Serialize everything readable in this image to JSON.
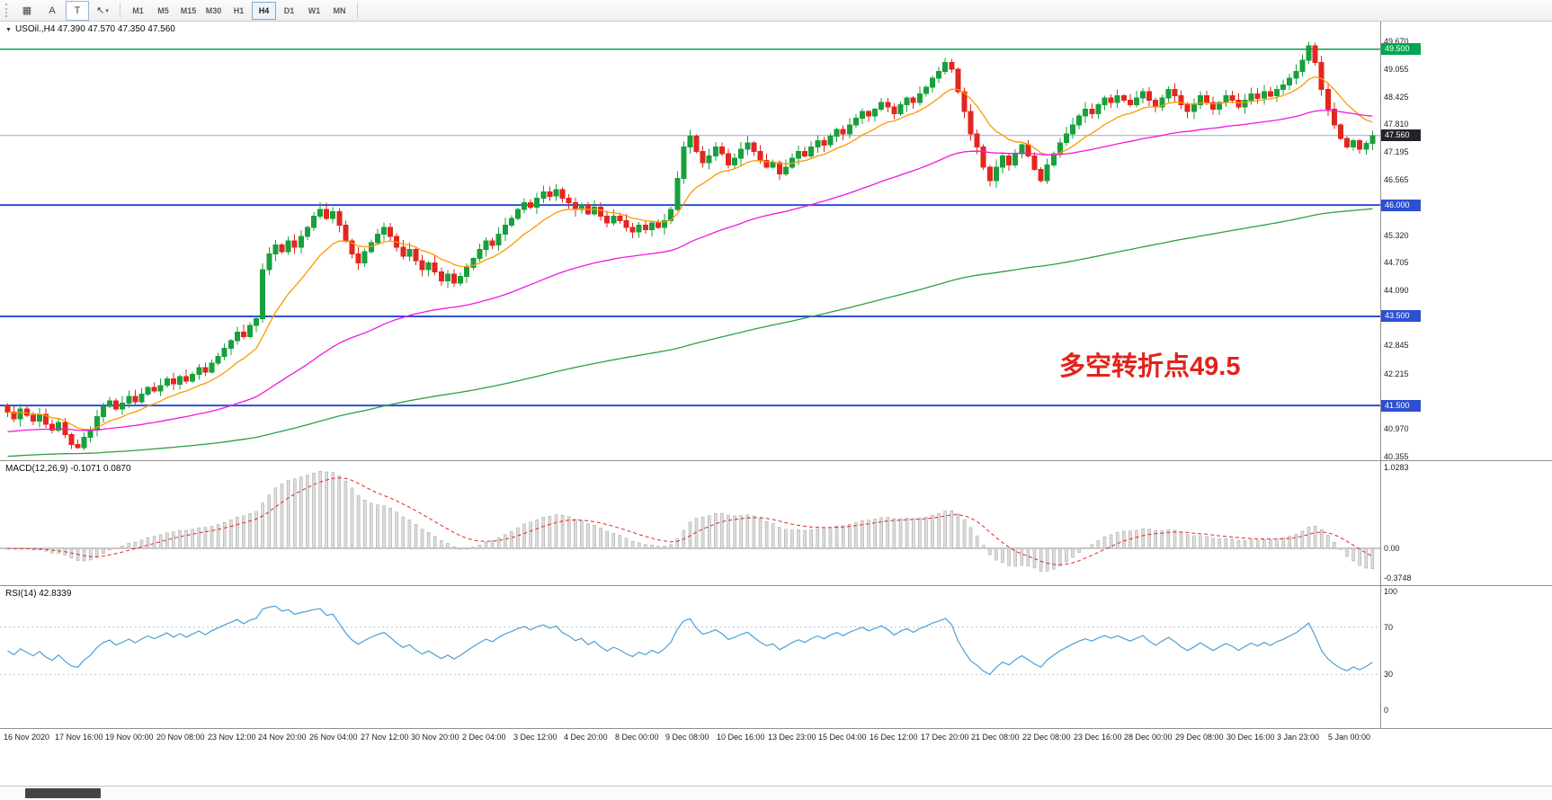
{
  "toolbar": {
    "tools": [
      {
        "name": "chart-grid",
        "glyph": "▦"
      },
      {
        "name": "text-a",
        "glyph": "A"
      },
      {
        "name": "text-t",
        "glyph": "T"
      },
      {
        "name": "cursor",
        "glyph": "↖",
        "caret": "▾"
      }
    ],
    "timeframes": [
      "M1",
      "M5",
      "M15",
      "M30",
      "H1",
      "H4",
      "D1",
      "W1",
      "MN"
    ],
    "active_timeframe": "H4"
  },
  "header": {
    "toggle": "▼",
    "symbol": "USOil.,H4",
    "ohlc": "47.390 47.570 47.350 47.560"
  },
  "annotation": {
    "text": "多空转折点49.5",
    "color": "#e2231a"
  },
  "indicators": {
    "macd": {
      "label": "MACD(12,26,9)",
      "values": "-0.1071 0.0870",
      "axis": [
        "1.0283",
        "0.00",
        "-0.3748"
      ]
    },
    "rsi": {
      "label": "RSI(14)",
      "value": "42.8339",
      "axis": [
        "100",
        "70",
        "30",
        "0"
      ],
      "levels": [
        70,
        30
      ]
    }
  },
  "price_axis": {
    "labels": [
      "49.670",
      "49.055",
      "48.425",
      "47.810",
      "47.195",
      "46.565",
      "45.320",
      "44.705",
      "44.090",
      "42.845",
      "42.215",
      "40.970",
      "40.355"
    ],
    "tags": [
      {
        "label": "49.500",
        "price": 49.5,
        "bg": "#00a651"
      },
      {
        "label": "47.560",
        "price": 47.56,
        "bg": "#23232d"
      },
      {
        "label": "46.000",
        "price": 46.0,
        "bg": "#2e4fd2"
      },
      {
        "label": "43.500",
        "price": 43.5,
        "bg": "#2e4fd2"
      },
      {
        "label": "41.500",
        "price": 41.5,
        "bg": "#2e4fd2"
      }
    ]
  },
  "time_axis": {
    "labels": [
      "16 Nov 2020",
      "17 Nov 16:00",
      "19 Nov 00:00",
      "20 Nov 08:00",
      "23 Nov 12:00",
      "24 Nov 20:00",
      "26 Nov 04:00",
      "27 Nov 12:00",
      "30 Nov 20:00",
      "2 Dec 04:00",
      "3 Dec 12:00",
      "4 Dec 20:00",
      "8 Dec 00:00",
      "9 Dec 08:00",
      "10 Dec 16:00",
      "13 Dec 23:00",
      "15 Dec 04:00",
      "16 Dec 12:00",
      "17 Dec 20:00",
      "21 Dec 08:00",
      "22 Dec 08:00",
      "23 Dec 16:00",
      "28 Dec 00:00",
      "29 Dec 08:00",
      "30 Dec 16:00",
      "3 Jan 23:00",
      "5 Jan 00:00"
    ]
  },
  "chart_data": {
    "type": "candlestick",
    "symbol": "USOil",
    "timeframe": "H4",
    "last_price": 47.56,
    "visible_price_range": [
      40.355,
      49.67
    ],
    "first_open": 41.5,
    "closes": [
      41.35,
      41.2,
      41.42,
      41.28,
      41.15,
      41.3,
      41.08,
      40.95,
      41.12,
      40.85,
      40.62,
      40.55,
      40.78,
      40.95,
      41.25,
      41.48,
      41.6,
      41.42,
      41.55,
      41.7,
      41.58,
      41.75,
      41.9,
      41.82,
      41.95,
      42.1,
      41.98,
      42.15,
      42.05,
      42.2,
      42.35,
      42.25,
      42.45,
      42.6,
      42.78,
      42.95,
      43.15,
      43.05,
      43.3,
      43.45,
      44.55,
      44.9,
      45.1,
      44.95,
      45.2,
      45.05,
      45.3,
      45.5,
      45.75,
      45.9,
      45.7,
      45.85,
      45.55,
      45.2,
      44.9,
      44.7,
      44.95,
      45.15,
      45.35,
      45.5,
      45.3,
      45.05,
      44.85,
      45.0,
      44.75,
      44.55,
      44.7,
      44.5,
      44.3,
      44.45,
      44.25,
      44.4,
      44.6,
      44.8,
      45.0,
      45.2,
      45.1,
      45.35,
      45.55,
      45.7,
      45.9,
      46.05,
      45.95,
      46.15,
      46.3,
      46.2,
      46.35,
      46.15,
      46.05,
      45.9,
      46.0,
      45.8,
      45.95,
      45.75,
      45.6,
      45.75,
      45.65,
      45.5,
      45.4,
      45.55,
      45.45,
      45.6,
      45.5,
      45.65,
      45.9,
      46.6,
      47.3,
      47.55,
      47.2,
      46.95,
      47.1,
      47.3,
      47.15,
      46.9,
      47.05,
      47.25,
      47.4,
      47.2,
      47.0,
      46.85,
      46.95,
      46.7,
      46.85,
      47.05,
      47.2,
      47.1,
      47.3,
      47.45,
      47.35,
      47.55,
      47.7,
      47.6,
      47.8,
      47.95,
      48.1,
      48.0,
      48.15,
      48.3,
      48.2,
      48.05,
      48.25,
      48.4,
      48.3,
      48.5,
      48.65,
      48.85,
      49.0,
      49.2,
      49.05,
      48.55,
      48.1,
      47.6,
      47.3,
      46.85,
      46.55,
      46.85,
      47.1,
      46.9,
      47.15,
      47.35,
      47.1,
      46.8,
      46.55,
      46.9,
      47.15,
      47.4,
      47.6,
      47.8,
      48.0,
      48.15,
      48.05,
      48.25,
      48.4,
      48.3,
      48.45,
      48.35,
      48.25,
      48.4,
      48.55,
      48.35,
      48.2,
      48.4,
      48.6,
      48.45,
      48.25,
      48.1,
      48.25,
      48.45,
      48.3,
      48.15,
      48.3,
      48.45,
      48.35,
      48.2,
      48.35,
      48.5,
      48.4,
      48.55,
      48.45,
      48.6,
      48.7,
      48.85,
      49.0,
      49.25,
      49.58,
      49.2,
      48.6,
      48.15,
      47.8,
      47.5,
      47.3,
      47.45,
      47.25,
      47.38,
      47.56
    ],
    "spike": {
      "index": 204,
      "high": 49.67
    },
    "hlines": [
      {
        "price": 49.5,
        "color": "#00a651",
        "width": 1.5
      },
      {
        "price": 47.56,
        "color": "#98a6cf",
        "width": 1
      },
      {
        "price": 46.0,
        "color": "#2e4fd2",
        "width": 2
      },
      {
        "price": 43.5,
        "color": "#2e4fd2",
        "width": 2
      },
      {
        "price": 41.5,
        "color": "#2e4fd2",
        "width": 2
      }
    ],
    "moving_averages": [
      {
        "name": "ma-fast-line",
        "color": "#ff9800",
        "alpha": 0.15,
        "init": 41.35
      },
      {
        "name": "ma-medium-line",
        "color": "#f316e0",
        "alpha": 0.03,
        "init": 40.9
      },
      {
        "name": "ma-slow-line",
        "color": "#2f9e44",
        "alpha": 0.0085,
        "init": 40.35
      }
    ],
    "macd": {
      "fast": 12,
      "slow": 26,
      "signal": 9,
      "current": -0.1071,
      "signal_current": 0.087,
      "axis_max": 1.0283,
      "axis_min": -0.3748
    },
    "rsi": {
      "period": 14,
      "current": 42.8339
    }
  },
  "colors": {
    "bull": "#18a03c",
    "bear": "#e3261f",
    "macd_hist_fill": "#dcdcdc",
    "macd_hist_stroke": "#a0a0a0",
    "macd_signal": "#e3261f",
    "macd_zero": "#909090",
    "rsi_line": "#4d9fd6",
    "rsi_levels": "#b9c5d6",
    "axis_text": "#1d1d1d"
  }
}
